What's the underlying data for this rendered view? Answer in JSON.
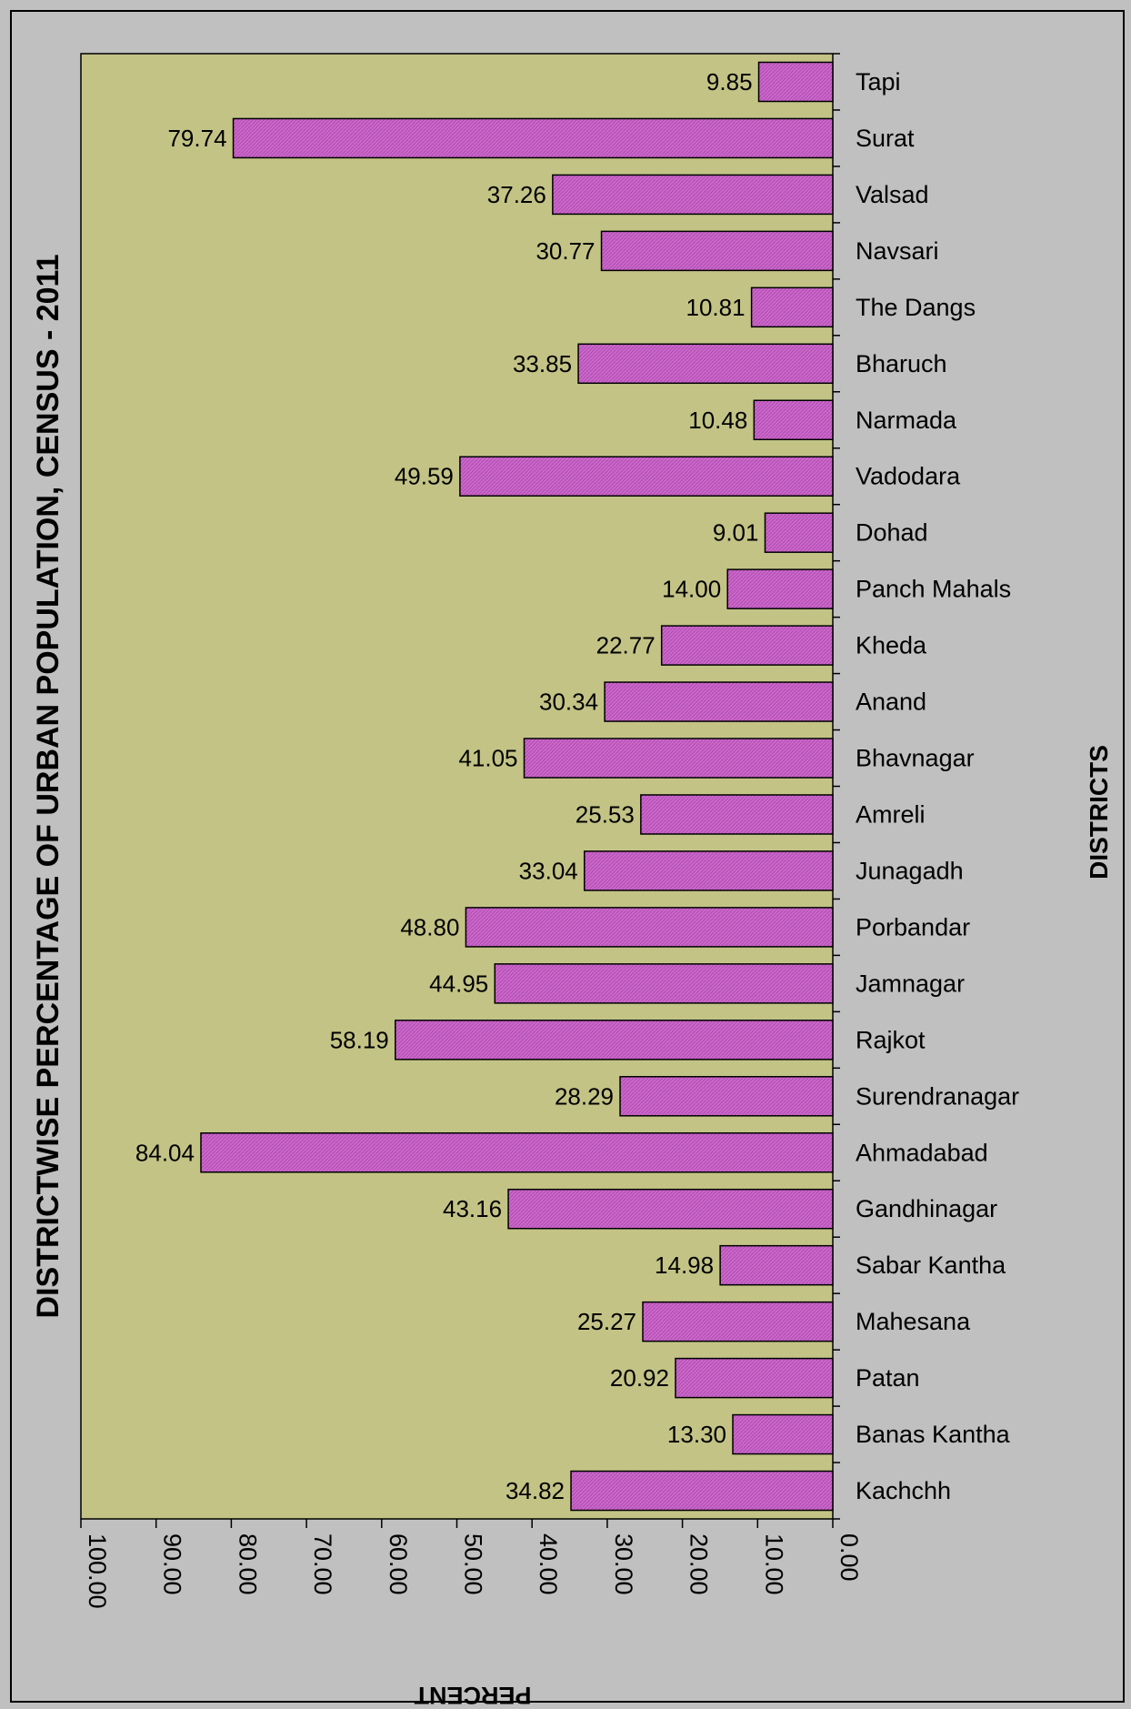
{
  "chart_data": {
    "type": "bar",
    "orientation": "horizontal",
    "title": "DISTRICTWISE PERCENTAGE OF URBAN POPULATION, CENSUS - 2011",
    "xlabel": "PERCENT",
    "ylabel": "DISTRICTS",
    "xlim": [
      0,
      100
    ],
    "x_ticks": [
      "100.00",
      "90.00",
      "80.00",
      "70.00",
      "60.00",
      "50.00",
      "40.00",
      "30.00",
      "20.00",
      "10.00",
      "0.00"
    ],
    "x_tick_values": [
      100,
      90,
      80,
      70,
      60,
      50,
      40,
      30,
      20,
      10,
      0
    ],
    "x_reversed": true,
    "grid": false,
    "colors": {
      "plot_bg": "#c3c386",
      "bar_fill": "#cc66cc",
      "bar_stroke": "#000000",
      "page_bg": "#c0c0c0"
    },
    "categories": [
      "Tapi",
      "Surat",
      "Valsad",
      "Navsari",
      "The Dangs",
      "Bharuch",
      "Narmada",
      "Vadodara",
      "Dohad",
      "Panch Mahals",
      "Kheda",
      "Anand",
      "Bhavnagar",
      "Amreli",
      "Junagadh",
      "Porbandar",
      "Jamnagar",
      "Rajkot",
      "Surendranagar",
      "Ahmadabad",
      "Gandhinagar",
      "Sabar Kantha",
      "Mahesana",
      "Patan",
      "Banas Kantha",
      "Kachchh"
    ],
    "values": [
      9.85,
      79.74,
      37.26,
      30.77,
      10.81,
      33.85,
      10.48,
      49.59,
      9.01,
      14.0,
      22.77,
      30.34,
      41.05,
      25.53,
      33.04,
      48.8,
      44.95,
      58.19,
      28.29,
      84.04,
      43.16,
      14.98,
      25.27,
      20.92,
      13.3,
      34.82
    ],
    "value_labels": [
      "9.85",
      "79.74",
      "37.26",
      "30.77",
      "10.81",
      "33.85",
      "10.48",
      "49.59",
      "9.01",
      "14.00",
      "22.77",
      "30.34",
      "41.05",
      "25.53",
      "33.04",
      "48.80",
      "44.95",
      "58.19",
      "28.29",
      "84.04",
      "43.16",
      "14.98",
      "25.27",
      "20.92",
      "13.30",
      "34.82"
    ]
  }
}
